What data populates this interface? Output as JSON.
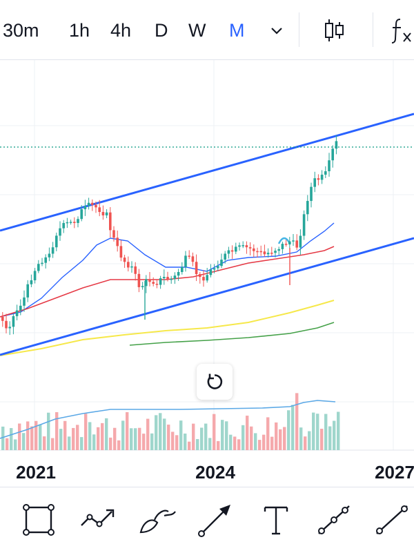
{
  "toolbar": {
    "timeframes": [
      {
        "label": "30m",
        "active": false
      },
      {
        "label": "1h",
        "active": false
      },
      {
        "label": "4h",
        "active": false
      },
      {
        "label": "D",
        "active": false
      },
      {
        "label": "W",
        "active": false
      },
      {
        "label": "M",
        "active": true
      }
    ],
    "dropdown_icon": "chevron-down-icon",
    "chart_type_icon": "candles-icon",
    "indicators_icon": "fx-icon",
    "accent_color": "#2962ff"
  },
  "chart": {
    "reset_icon": "reset-icon",
    "colors": {
      "up": "#26a69a",
      "down": "#ef5350",
      "channel": "#2962ff",
      "ma_blue": "#2962ff",
      "ma_red": "#e53945",
      "ma_yellow": "#f6e84a",
      "ma_green": "#43a047",
      "price_line": "#089981"
    }
  },
  "chart_data": {
    "type": "candlestick",
    "x_tick_labels": [
      "2021",
      "2024",
      "2027"
    ]
  },
  "drawing_tools": [
    {
      "icon": "rectangle-icon"
    },
    {
      "icon": "polyline-icon"
    },
    {
      "icon": "brush-icon"
    },
    {
      "icon": "arrow-icon"
    },
    {
      "icon": "text-icon"
    },
    {
      "icon": "trend-line-icon"
    },
    {
      "icon": "line-icon"
    }
  ]
}
